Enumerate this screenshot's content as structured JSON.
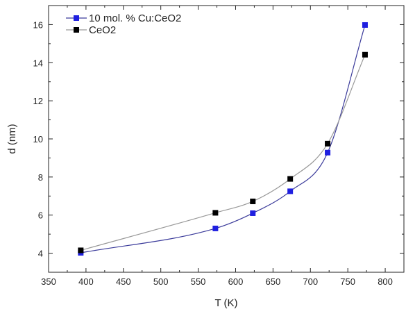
{
  "chart_data": {
    "type": "scatter",
    "xlabel": "T (K)",
    "ylabel": "d (nm)",
    "xlim": [
      350,
      825
    ],
    "ylim": [
      3.0,
      17.0
    ],
    "xticks": [
      "350",
      "400",
      "450",
      "500",
      "550",
      "600",
      "650",
      "700",
      "750",
      "800"
    ],
    "yticks": [
      "4",
      "6",
      "8",
      "10",
      "12",
      "14",
      "16"
    ],
    "grid": false,
    "legend_position": "top-left",
    "series": [
      {
        "name": "10 mol. % Cu:CeO2",
        "color": "#1f1fe0",
        "line_color": "#3a3a9a",
        "marker": "square",
        "x": [
          393,
          573,
          623,
          673,
          723,
          773
        ],
        "y": [
          4.02,
          5.3,
          6.1,
          7.25,
          9.28,
          15.98
        ]
      },
      {
        "name": "CeO2",
        "color": "#000000",
        "line_color": "#999999",
        "marker": "square",
        "x": [
          393,
          573,
          623,
          673,
          723,
          773
        ],
        "y": [
          4.15,
          6.12,
          6.72,
          7.9,
          9.75,
          14.42
        ]
      }
    ]
  }
}
